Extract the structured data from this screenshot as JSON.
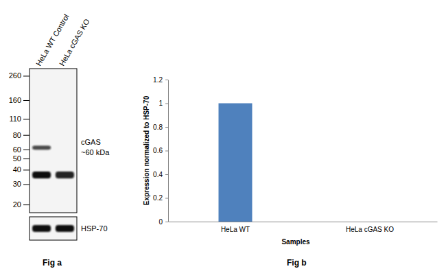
{
  "chart_data": [
    {
      "type": "blot",
      "title": "Fig a",
      "categories": [
        "HeLa WT Control",
        "HeLa cGAS KO"
      ],
      "log": "y",
      "ylim": [
        300,
        17
      ],
      "yticks": [
        260,
        160,
        110,
        80,
        60,
        50,
        40,
        30,
        20
      ],
      "bands": [
        {
          "name": "cGAS",
          "label": "~60 kDa",
          "kda": 62,
          "values": [
            0.75,
            0
          ]
        },
        {
          "kda": 36,
          "values": [
            1,
            0.9
          ]
        }
      ],
      "loading_control": {
        "name": "HSP-70",
        "values": [
          1,
          1
        ]
      }
    },
    {
      "type": "bar",
      "title": "Fig b",
      "categories": [
        "HeLa WT",
        "HeLa cGAS KO"
      ],
      "values": [
        1,
        0
      ],
      "color": "#4f81bd",
      "ylim": [
        0,
        1.2
      ],
      "yticks": [
        0,
        0.2,
        0.4,
        0.6,
        0.8,
        1,
        1.2
      ],
      "x_label": "Samples",
      "y_label": "Expression normalized to HSP-70"
    }
  ]
}
